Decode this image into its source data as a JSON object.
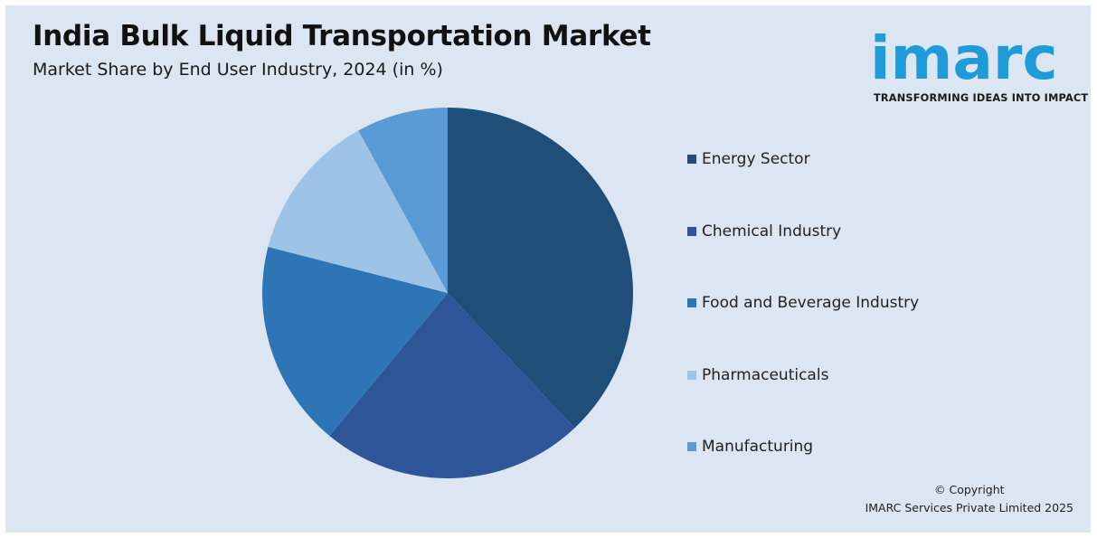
{
  "header": {
    "title": "India Bulk Liquid Transportation Market",
    "subtitle": "Market Share by End User Industry, 2024 (in %)"
  },
  "logo": {
    "word": "imarc",
    "tagline": "TRANSFORMING IDEAS INTO IMPACT",
    "color": "#1f9bd7"
  },
  "chart_data": {
    "type": "pie",
    "title": "India Bulk Liquid Transportation Market",
    "subtitle": "Market Share by End User Industry, 2024 (in %)",
    "legend_position": "right",
    "categories": [
      "Energy Sector",
      "Chemical Industry",
      "Food and Beverage Industry",
      "Pharmaceuticals",
      "Manufacturing"
    ],
    "values": [
      38,
      23,
      18,
      13,
      8
    ],
    "colors": [
      "#1f4e79",
      "#2e5597",
      "#2e75b6",
      "#9dc3e6",
      "#5b9bd5"
    ]
  },
  "footer": {
    "copyright_line1": "© Copyright",
    "copyright_line2": "IMARC Services Private Limited 2025"
  }
}
